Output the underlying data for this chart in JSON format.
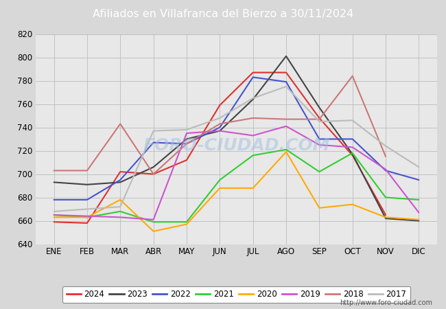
{
  "title": "Afiliados en Villafranca del Bierzo a 30/11/2024",
  "header_bg": "#4d7abf",
  "bg_color": "#d8d8d8",
  "plot_bg": "#e8e8e8",
  "ylim": [
    640,
    820
  ],
  "yticks": [
    640,
    660,
    680,
    700,
    720,
    740,
    760,
    780,
    800,
    820
  ],
  "months": [
    "ENE",
    "FEB",
    "MAR",
    "ABR",
    "MAY",
    "JUN",
    "JUL",
    "AGO",
    "SEP",
    "OCT",
    "NOV",
    "DIC"
  ],
  "series": {
    "2024": {
      "color": "#e03030",
      "data": [
        659,
        658,
        702,
        700,
        712,
        759,
        787,
        787,
        748,
        716,
        665,
        null
      ]
    },
    "2023": {
      "color": "#444444",
      "data": [
        693,
        691,
        693,
        706,
        730,
        737,
        764,
        801,
        757,
        717,
        662,
        660
      ]
    },
    "2022": {
      "color": "#4455cc",
      "data": [
        678,
        678,
        695,
        727,
        726,
        740,
        783,
        779,
        730,
        730,
        703,
        695
      ]
    },
    "2021": {
      "color": "#33cc33",
      "data": [
        665,
        663,
        668,
        659,
        659,
        695,
        716,
        721,
        702,
        718,
        680,
        678
      ]
    },
    "2020": {
      "color": "#ffaa00",
      "data": [
        663,
        663,
        678,
        651,
        657,
        688,
        688,
        719,
        671,
        674,
        663,
        661
      ]
    },
    "2019": {
      "color": "#cc55cc",
      "data": [
        665,
        664,
        663,
        661,
        735,
        737,
        733,
        741,
        725,
        723,
        704,
        667
      ]
    },
    "2018": {
      "color": "#cc7777",
      "data": [
        703,
        703,
        743,
        700,
        726,
        743,
        748,
        747,
        747,
        784,
        715,
        null
      ]
    },
    "2017": {
      "color": "#bbbbbb",
      "data": [
        668,
        670,
        672,
        737,
        738,
        748,
        765,
        775,
        745,
        746,
        724,
        706
      ]
    }
  },
  "legend_order": [
    "2024",
    "2023",
    "2022",
    "2021",
    "2020",
    "2019",
    "2018",
    "2017"
  ],
  "watermark": "FORO-CIUDAD.COM",
  "url": "http://www.foro-ciudad.com",
  "grid_color": "#bbbbbb",
  "linewidth": 1.5
}
